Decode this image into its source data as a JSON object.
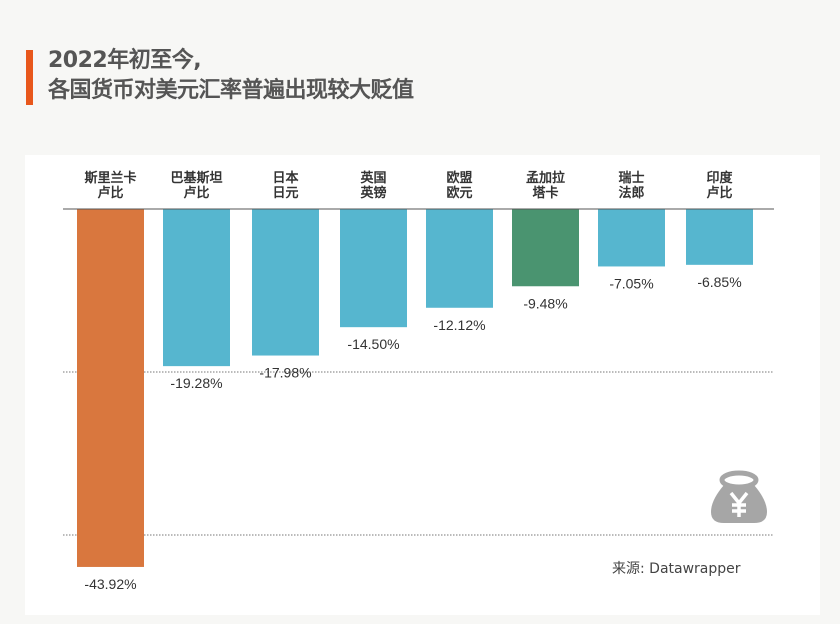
{
  "title": {
    "line1": "2022年初至今,",
    "line2": "各国货币对美元汇率普遍出现较大贬值"
  },
  "source": "来源: Datawrapper",
  "icon": "money-bag-yen-icon",
  "chart_data": {
    "type": "bar",
    "orientation": "vertical-negative",
    "categories": [
      [
        "斯里兰卡",
        "卢比"
      ],
      [
        "巴基斯坦",
        "卢比"
      ],
      [
        "日本",
        "日元"
      ],
      [
        "英国",
        "英镑"
      ],
      [
        "欧盟",
        "欧元"
      ],
      [
        "孟加拉",
        "塔卡"
      ],
      [
        "瑞士",
        "法郎"
      ],
      [
        "印度",
        "卢比"
      ]
    ],
    "values": [
      -43.92,
      -19.28,
      -17.98,
      -14.5,
      -12.12,
      -9.48,
      -7.05,
      -6.85
    ],
    "labels": [
      "-43.92%",
      "-19.28%",
      "-17.98%",
      "-14.50%",
      "-12.12%",
      "-9.48%",
      "-7.05%",
      "-6.85%"
    ],
    "colors": [
      "#d9773e",
      "#56b6cf",
      "#56b6cf",
      "#56b6cf",
      "#56b6cf",
      "#4a9470",
      "#56b6cf",
      "#56b6cf"
    ],
    "ylim": [
      -45,
      0
    ],
    "gridlines": [
      -20,
      -40
    ],
    "grid": true
  }
}
